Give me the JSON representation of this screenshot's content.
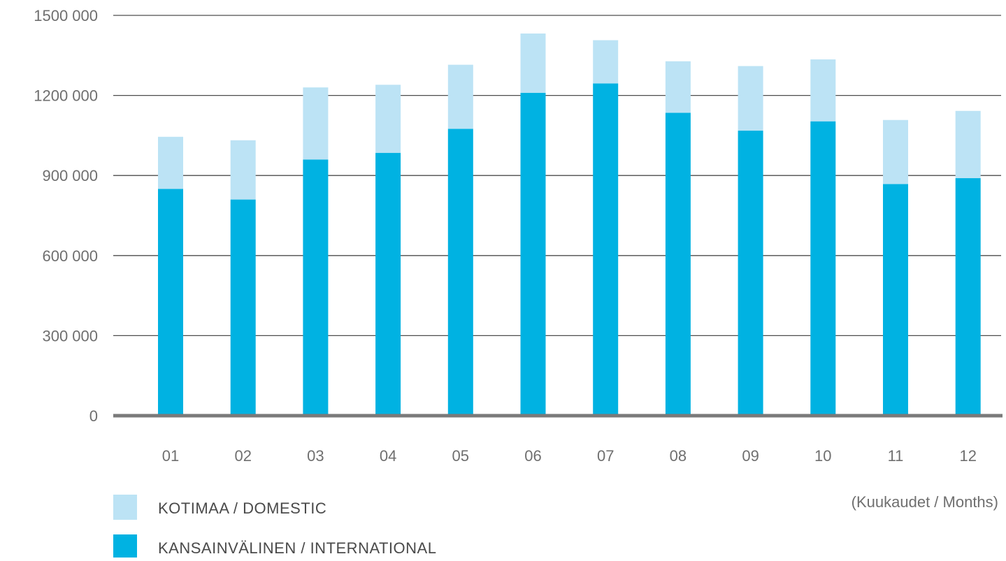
{
  "chart_data": {
    "type": "bar",
    "stacked": true,
    "categories": [
      "01",
      "02",
      "03",
      "04",
      "05",
      "06",
      "07",
      "08",
      "09",
      "10",
      "11",
      "12"
    ],
    "series": [
      {
        "name": "KANSAINVÄLINEN / INTERNATIONAL",
        "color": "#00b2e2",
        "values": [
          850000,
          810000,
          960000,
          985000,
          1075000,
          1210000,
          1245000,
          1135000,
          1068000,
          1103000,
          868000,
          890000
        ]
      },
      {
        "name": "KOTIMAA / DOMESTIC",
        "color": "#bce3f5",
        "values": [
          195000,
          222000,
          270000,
          255000,
          240000,
          222000,
          162000,
          193000,
          242000,
          232000,
          240000,
          252000
        ]
      }
    ],
    "ylim": [
      0,
      1500000
    ],
    "yticks": [
      0,
      300000,
      600000,
      900000,
      1200000,
      1500000
    ],
    "ytick_labels": [
      "0",
      "300 000",
      "600 000",
      "900 000",
      "1200 000",
      "1500 000"
    ],
    "xlabel": "(Kuukaudet / Months)",
    "ylabel": "",
    "title": "",
    "grid": true,
    "legend_position": "bottom-left",
    "gridline_color": "#4d4d4d",
    "baseline_color": "#7a7a7a"
  }
}
